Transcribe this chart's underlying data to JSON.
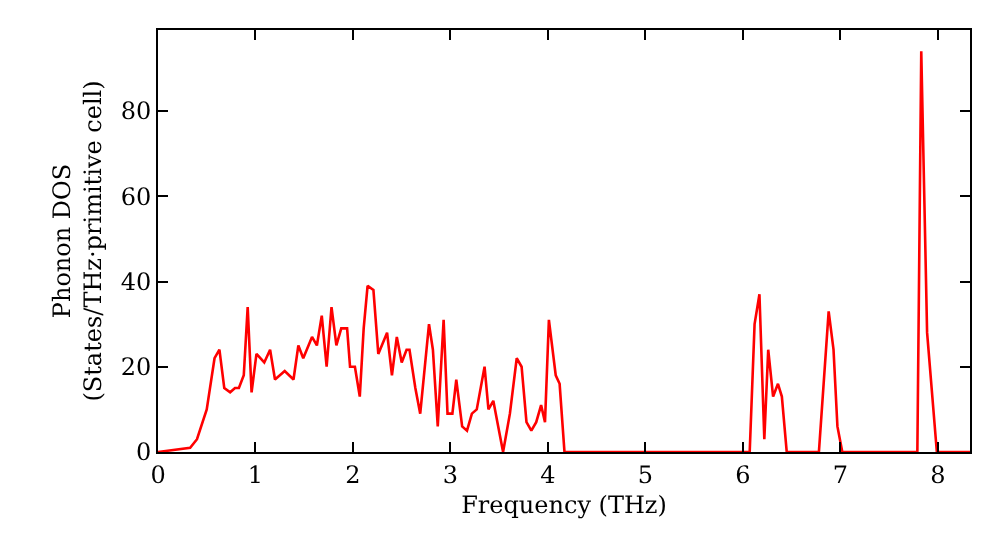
{
  "chart_data": {
    "type": "line",
    "xlabel": "Frequency (THz)",
    "ylabel": "Phonon DOS\n(States/THz·primitive cell)",
    "xlim": [
      0,
      8.33
    ],
    "ylim": [
      0,
      99
    ],
    "xticks": [
      0,
      1,
      2,
      3,
      4,
      5,
      6,
      7,
      8
    ],
    "yticks": [
      0,
      20,
      40,
      60,
      80
    ],
    "grid": false,
    "legend": false,
    "marker": "none",
    "line_style": "solid",
    "series": [
      {
        "color": "#ff0000",
        "x": [
          0,
          0.33,
          0.4,
          0.5,
          0.58,
          0.63,
          0.68,
          0.74,
          0.79,
          0.83,
          0.88,
          0.92,
          0.96,
          1.01,
          1.09,
          1.15,
          1.2,
          1.3,
          1.39,
          1.44,
          1.49,
          1.58,
          1.63,
          1.68,
          1.73,
          1.78,
          1.83,
          1.88,
          1.94,
          1.97,
          2.02,
          2.07,
          2.11,
          2.15,
          2.21,
          2.26,
          2.35,
          2.4,
          2.45,
          2.5,
          2.55,
          2.58,
          2.64,
          2.69,
          2.78,
          2.82,
          2.87,
          2.93,
          2.97,
          3.02,
          3.06,
          3.12,
          3.17,
          3.22,
          3.27,
          3.35,
          3.39,
          3.44,
          3.49,
          3.54,
          3.61,
          3.68,
          3.73,
          3.78,
          3.83,
          3.88,
          3.93,
          3.97,
          4.01,
          4.08,
          4.12,
          4.17,
          6.07,
          6.12,
          6.17,
          6.22,
          6.26,
          6.31,
          6.36,
          6.4,
          6.45,
          6.78,
          6.88,
          6.93,
          6.97,
          7.02,
          7.79,
          7.83,
          7.89,
          7.99,
          8.33
        ],
        "values": [
          0,
          1,
          3,
          10,
          22,
          24,
          15,
          14,
          15,
          15,
          18,
          34,
          14,
          23,
          21,
          24,
          17,
          19,
          17,
          25,
          22,
          27,
          25,
          32,
          20,
          34,
          25,
          29,
          29,
          20,
          20,
          13,
          29,
          39,
          38,
          23,
          28,
          18,
          27,
          21,
          24,
          24,
          15,
          9,
          30,
          24,
          6,
          31,
          9,
          9,
          17,
          6,
          5,
          9,
          10,
          20,
          10,
          12,
          6,
          0,
          9,
          22,
          20,
          7,
          5,
          7,
          11,
          7,
          31,
          18,
          16,
          0,
          0,
          30,
          37,
          3,
          24,
          13,
          16,
          13,
          0,
          0,
          33,
          24,
          6,
          0,
          0,
          94,
          28,
          0,
          0
        ]
      }
    ]
  }
}
